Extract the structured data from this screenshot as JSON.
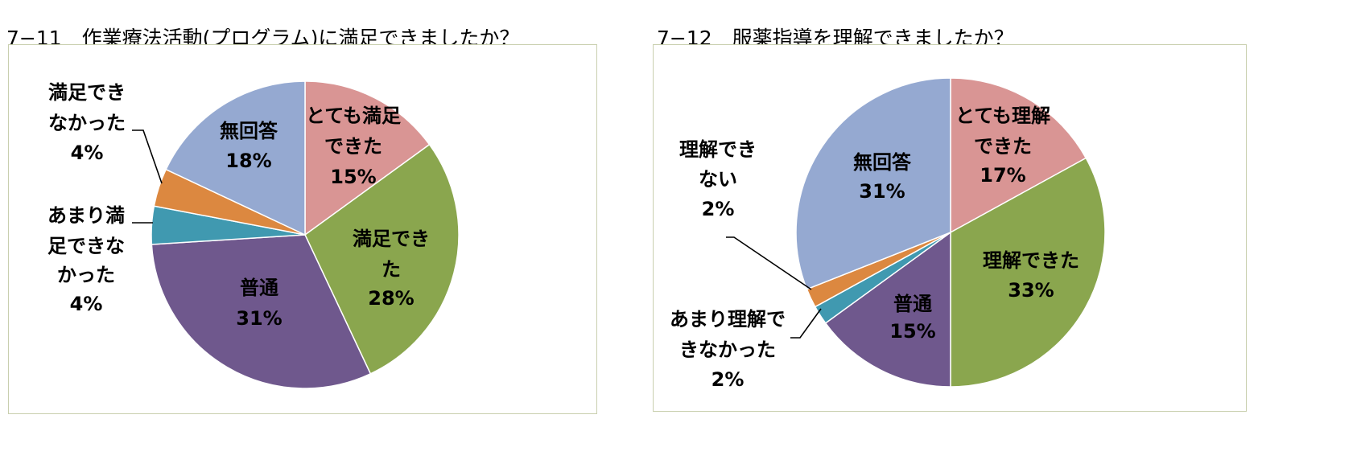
{
  "chart_data": [
    {
      "type": "pie",
      "title": "7−11　作業療法活動(プログラム)に満足できましたか？",
      "slices": [
        {
          "label": "とても満足できた",
          "value": 15,
          "percent_label": "15%",
          "color": "#d99594"
        },
        {
          "label": "満足できた",
          "value": 28,
          "percent_label": "28%",
          "color": "#8aa64e"
        },
        {
          "label": "普通",
          "value": 31,
          "percent_label": "31%",
          "color": "#6f588d"
        },
        {
          "label": "あまり満足できなかった",
          "value": 4,
          "percent_label": "4%",
          "color": "#4099b0"
        },
        {
          "label": "満足できなかった",
          "value": 4,
          "percent_label": "4%",
          "color": "#dc8840"
        },
        {
          "label": "無回答",
          "value": 18,
          "percent_label": "18%",
          "color": "#95a9d1"
        }
      ],
      "legend": "none"
    },
    {
      "type": "pie",
      "title": "7−12　服薬指導を理解できましたか？",
      "slices": [
        {
          "label": "とても理解できた",
          "value": 17,
          "percent_label": "17%",
          "color": "#d99594"
        },
        {
          "label": "理解できた",
          "value": 33,
          "percent_label": "33%",
          "color": "#8aa64e"
        },
        {
          "label": "普通",
          "value": 15,
          "percent_label": "15%",
          "color": "#6f588d"
        },
        {
          "label": "あまり理解できなかった",
          "value": 2,
          "percent_label": "2%",
          "color": "#4099b0"
        },
        {
          "label": "理解できない",
          "value": 2,
          "percent_label": "2%",
          "color": "#dc8840"
        },
        {
          "label": "無回答",
          "value": 31,
          "percent_label": "31%",
          "color": "#95a9d1"
        }
      ],
      "legend": "none"
    }
  ]
}
